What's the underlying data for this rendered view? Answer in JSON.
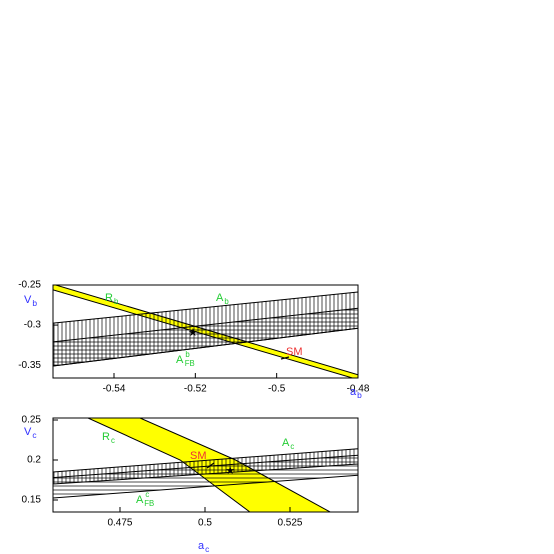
{
  "chart_data": [
    {
      "type": "band",
      "xlim": [
        -0.555,
        -0.48
      ],
      "ylim": [
        -0.366,
        -0.25
      ],
      "xticks": [
        -0.54,
        -0.52,
        -0.5,
        -0.48
      ],
      "yticks": [
        -0.25,
        -0.3,
        -0.35
      ],
      "xlabel": {
        "text": "a",
        "sub": "b"
      },
      "ylabel": {
        "text": "V",
        "sub": "b"
      },
      "axis_label_color": "#3030ff",
      "series": [
        {
          "name": {
            "text": "R",
            "sub": "b"
          },
          "label_color": "#22cc33",
          "fill": "#ffff00",
          "hatch": "none",
          "x": [
            -0.555,
            -0.48,
            -0.48,
            -0.555
          ],
          "y": [
            -0.249,
            -0.362,
            -0.368,
            -0.256
          ]
        },
        {
          "name": {
            "text": "A",
            "sub": "b"
          },
          "label_color": "#22cc33",
          "fill": "none",
          "hatch": "vertical",
          "x": [
            -0.555,
            -0.48,
            -0.48,
            -0.555
          ],
          "y": [
            -0.2975,
            -0.2588,
            -0.304,
            -0.351
          ]
        },
        {
          "name": {
            "text": "A",
            "sub": "FB",
            "sup": "b"
          },
          "label_color": "#22cc33",
          "fill": "none",
          "hatch": "horizontal",
          "x": [
            -0.555,
            -0.48,
            -0.48,
            -0.555
          ],
          "y": [
            -0.321,
            -0.279,
            -0.304,
            -0.351
          ]
        }
      ],
      "markers": [
        {
          "x": -0.5206,
          "y": -0.31
        }
      ],
      "annotation": {
        "text": "SM",
        "color": "#ee3333"
      }
    },
    {
      "type": "band",
      "xlim": [
        0.4553,
        0.545
      ],
      "ylim": [
        0.135,
        0.2525
      ],
      "xticks": [
        0.475,
        0.5,
        0.525
      ],
      "yticks": [
        0.25,
        0.2,
        0.15
      ],
      "xlabel": {
        "text": "a",
        "sub": "c"
      },
      "ylabel": {
        "text": "V",
        "sub": "c"
      },
      "axis_label_color": "#3030ff",
      "series": [
        {
          "name": {
            "text": "R",
            "sub": "c"
          },
          "label_color": "#22cc33",
          "fill": "#ffff00",
          "hatch": "none",
          "x": [
            0.4656,
            0.4927,
            0.5132,
            0.5368,
            0.509,
            0.4809
          ],
          "y": [
            0.2525,
            0.2,
            0.135,
            0.135,
            0.2,
            0.2525
          ]
        },
        {
          "name": {
            "text": "A",
            "sub": "c"
          },
          "label_color": "#22cc33",
          "fill": "none",
          "hatch": "vertical",
          "x": [
            0.4553,
            0.545,
            0.545,
            0.4553
          ],
          "y": [
            0.185,
            0.214,
            0.195,
            0.17
          ]
        },
        {
          "name": {
            "text": "A",
            "sub": "FB",
            "sup": "c"
          },
          "label_color": "#22cc33",
          "fill": "none",
          "hatch": "horizontal",
          "x": [
            0.4553,
            0.545,
            0.545,
            0.4553
          ],
          "y": [
            0.178,
            0.206,
            0.181,
            0.1525
          ]
        }
      ],
      "markers": [
        {
          "x": 0.5074,
          "y": 0.186
        }
      ],
      "annotation": {
        "text": "SM",
        "color": "#ee3333"
      }
    }
  ]
}
